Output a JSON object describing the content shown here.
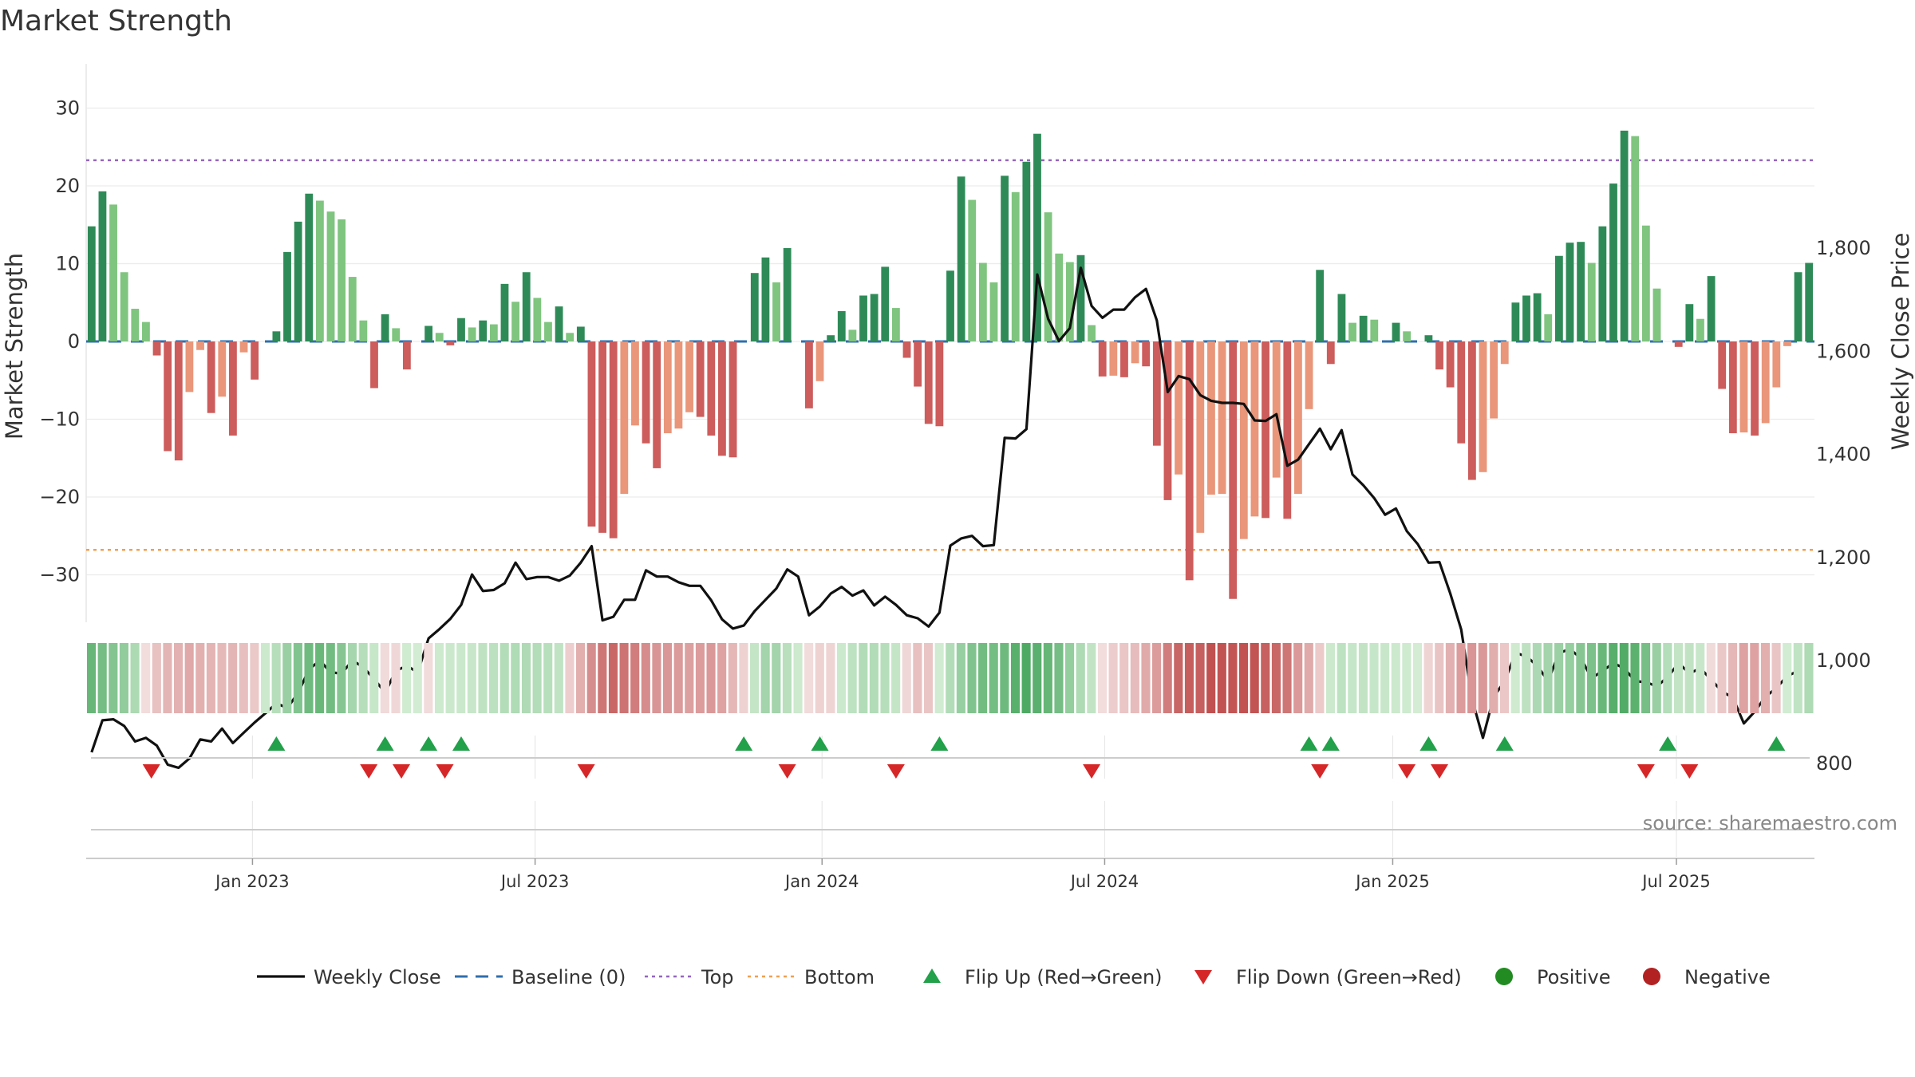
{
  "chart_data": {
    "type": "bar",
    "title": "Market Strength",
    "ylabel_left": "Market Strength",
    "ylabel_right": "Weekly Close Price",
    "y_left_range": [
      -35,
      36
    ],
    "y_left_ticks": [
      30,
      20,
      10,
      0,
      -10,
      -20,
      -30
    ],
    "y_left_tick_labels": [
      "30",
      "20",
      "10",
      "0",
      "−10",
      "−20",
      "−30"
    ],
    "y_right_range": [
      760,
      1810
    ],
    "y_right_ticks": [
      1800,
      1600,
      1400,
      1200,
      1000,
      800
    ],
    "y_right_tick_labels": [
      "1,800",
      "1,600",
      "1,400",
      "1,200",
      "1,000",
      "800"
    ],
    "x_tick_labels": [
      "Jan 2023",
      "Jul 2023",
      "Jan 2024",
      "Jul 2024",
      "Jan 2025",
      "Jul 2025"
    ],
    "x_tick_positions": [
      15.3,
      41.3,
      67.7,
      93.7,
      120.2,
      146.3
    ],
    "top_level": 23.3,
    "bottom_level": -26.8,
    "baseline": 0,
    "strength": [
      14.8,
      19.3,
      17.6,
      8.9,
      4.2,
      2.5,
      -1.8,
      -14.1,
      -15.3,
      -6.5,
      -1.1,
      -9.2,
      -7.1,
      -12.1,
      -1.4,
      -4.9,
      0,
      1.3,
      11.5,
      15.4,
      19.0,
      18.1,
      16.7,
      15.7,
      8.3,
      2.7,
      -6.0,
      3.5,
      1.7,
      -3.6,
      0,
      2.0,
      1.1,
      -0.5,
      3.0,
      1.8,
      2.7,
      2.2,
      7.4,
      5.1,
      8.9,
      5.6,
      2.5,
      4.5,
      1.1,
      1.9,
      -23.8,
      -24.6,
      -25.3,
      -19.6,
      -10.8,
      -13.1,
      -16.3,
      -11.8,
      -11.2,
      -9.1,
      -9.7,
      -12.1,
      -14.7,
      -14.9,
      0,
      8.8,
      10.8,
      7.6,
      12.0,
      0,
      -8.6,
      -5.1,
      0.8,
      3.9,
      1.5,
      5.9,
      6.1,
      9.6,
      4.3,
      -2.1,
      -5.8,
      -10.6,
      -10.9,
      9.1,
      21.2,
      18.2,
      10.1,
      7.6,
      21.3,
      19.2,
      23.1,
      26.7,
      16.6,
      11.3,
      10.2,
      11.1,
      2.1,
      -4.5,
      -4.4,
      -4.6,
      -2.8,
      -3.2,
      -13.4,
      -20.4,
      -17.1,
      -30.7,
      -24.6,
      -19.7,
      -19.6,
      -33.1,
      -25.4,
      -22.5,
      -22.7,
      -17.5,
      -22.8,
      -19.6,
      -8.7,
      9.2,
      -2.9,
      6.1,
      2.4,
      3.3,
      2.8,
      0,
      2.4,
      1.3,
      0,
      0.8,
      -3.6,
      -5.9,
      -13.1,
      -17.8,
      -16.8,
      -9.9,
      -2.9,
      5.0,
      5.9,
      6.2,
      3.5,
      11.0,
      12.7,
      12.8,
      10.1,
      14.8,
      20.3,
      27.1,
      26.4,
      14.9,
      6.8,
      0,
      -0.7,
      4.8,
      2.9,
      8.4,
      -6.1,
      -11.8,
      -11.7,
      -12.1,
      -10.5,
      -5.9,
      -0.6,
      8.9,
      10.1
    ],
    "weekly_close": [
      822,
      884,
      886,
      873,
      843,
      850,
      835,
      798,
      792,
      810,
      847,
      843,
      868,
      840,
      860,
      880,
      898,
      917,
      908,
      937,
      983,
      1000,
      977,
      975,
      1000,
      987,
      964,
      938,
      980,
      990,
      977,
      1043,
      1061,
      1081,
      1108,
      1167,
      1135,
      1137,
      1150,
      1190,
      1158,
      1162,
      1162,
      1155,
      1165,
      1190,
      1222,
      1078,
      1085,
      1118,
      1118,
      1175,
      1163,
      1163,
      1152,
      1145,
      1145,
      1117,
      1080,
      1062,
      1068,
      1096,
      1118,
      1140,
      1177,
      1163,
      1088,
      1105,
      1130,
      1143,
      1126,
      1136,
      1107,
      1124,
      1108,
      1088,
      1082,
      1066,
      1093,
      1223,
      1237,
      1242,
      1222,
      1224,
      1432,
      1431,
      1449,
      1749,
      1663,
      1620,
      1645,
      1762,
      1688,
      1665,
      1681,
      1681,
      1705,
      1721,
      1660,
      1521,
      1552,
      1546,
      1515,
      1504,
      1500,
      1500,
      1498,
      1466,
      1465,
      1478,
      1378,
      1390,
      1420,
      1450,
      1410,
      1447,
      1361,
      1340,
      1315,
      1283,
      1295,
      1251,
      1226,
      1190,
      1191,
      1130,
      1060,
      925,
      850,
      930,
      960,
      1015,
      1008,
      990,
      960,
      1015,
      1022,
      1005,
      966,
      980,
      995,
      985,
      960,
      958,
      950,
      968,
      995,
      975,
      985,
      963,
      940,
      928,
      878,
      901,
      930,
      947,
      970,
      980
    ],
    "flip_up_weeks": [
      17.5,
      27.5,
      31.5,
      34.5,
      60.5,
      67.5,
      78.5,
      112.5,
      114.5,
      123.5,
      130.5,
      145.5,
      155.5
    ],
    "flip_down_weeks": [
      6,
      26,
      29,
      33,
      46,
      64.5,
      74.5,
      92.5,
      113.5,
      121.5,
      124.5,
      143.5,
      147.5
    ],
    "source_text": "source: sharemaestro.com",
    "legend": [
      {
        "label": "Weekly Close",
        "style": "line",
        "color": "#111111"
      },
      {
        "label": "Baseline (0)",
        "style": "dash",
        "color": "#2f6fae"
      },
      {
        "label": "Top",
        "style": "dot",
        "color": "#9467bd"
      },
      {
        "label": "Bottom",
        "style": "dot",
        "color": "#f0a050"
      },
      {
        "label": "Flip Up (Red→Green)",
        "style": "tri-up",
        "color": "#22a04a"
      },
      {
        "label": "Flip Down (Green→Red)",
        "style": "tri-down",
        "color": "#d62728"
      },
      {
        "label": "Positive",
        "style": "dot-marker",
        "color": "#228b22"
      },
      {
        "label": "Negative",
        "style": "dot-marker",
        "color": "#b22222"
      }
    ],
    "legend_position": "bottom-center",
    "colors": {
      "pos_strong": "#2e8b57",
      "pos_light": "#7fc47f",
      "neg_strong": "#cd5c5c",
      "neg_light": "#e9967a",
      "baseline": "#2f6fae",
      "top": "#9467bd",
      "bottom": "#f0a050",
      "close_line": "#111111"
    }
  }
}
